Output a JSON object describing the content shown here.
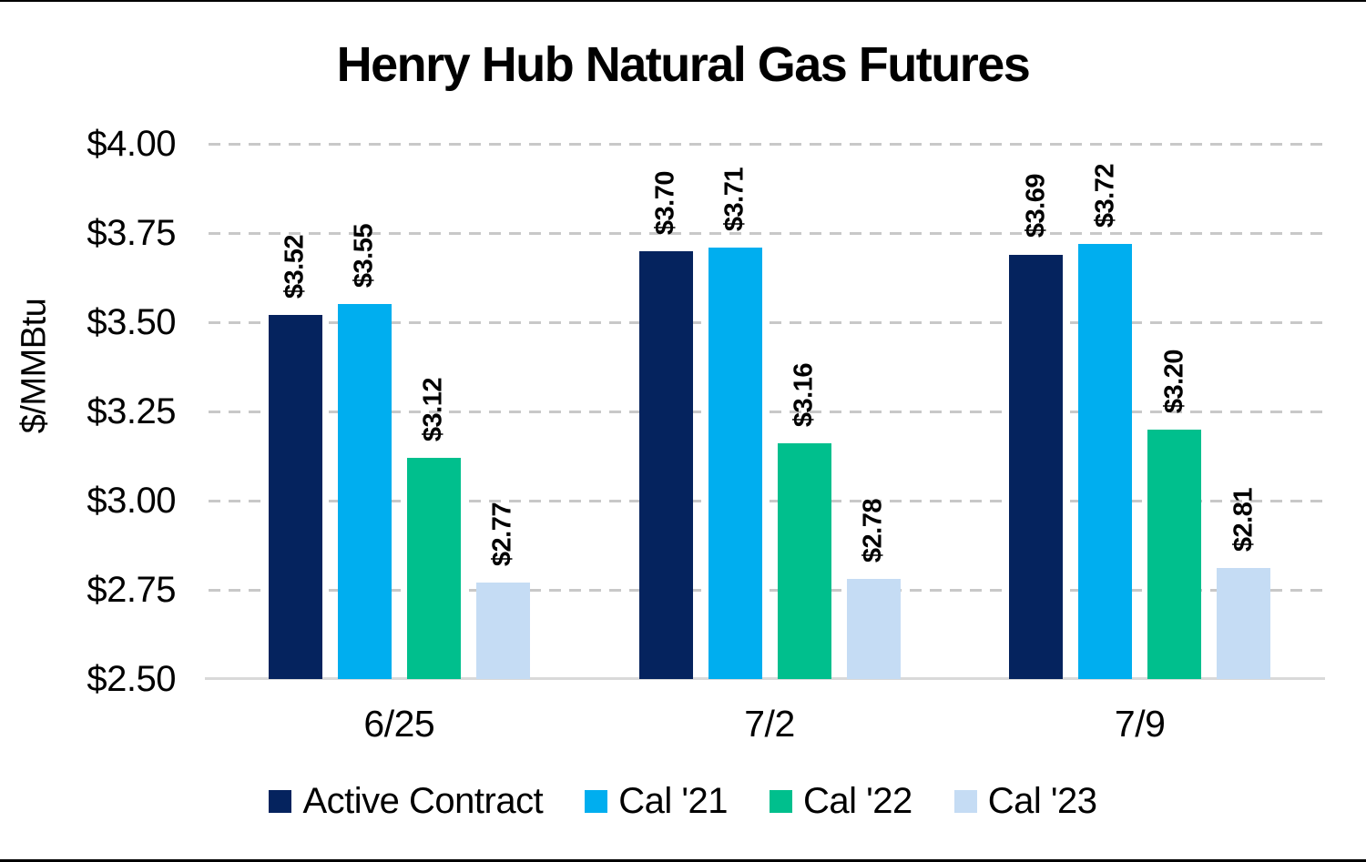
{
  "chart_data": {
    "type": "bar",
    "title": "Henry Hub Natural Gas Futures",
    "ylabel": "$/MMBtu",
    "xlabel": "",
    "categories": [
      "6/25",
      "7/2",
      "7/9"
    ],
    "series": [
      {
        "name": "Active Contract",
        "color": "#05235E",
        "values": [
          3.52,
          3.7,
          3.69
        ],
        "bar_labels": [
          "$3.52",
          "$3.70",
          "$3.69"
        ]
      },
      {
        "name": "Cal '21",
        "color": "#00AEEF",
        "values": [
          3.55,
          3.71,
          3.72
        ],
        "bar_labels": [
          "$3.55",
          "$3.71",
          "$3.72"
        ]
      },
      {
        "name": "Cal '22",
        "color": "#00BF8D",
        "values": [
          3.12,
          3.16,
          3.2
        ],
        "bar_labels": [
          "$3.12",
          "$3.16",
          "$3.20"
        ]
      },
      {
        "name": "Cal '23",
        "color": "#C5DCF4",
        "values": [
          2.77,
          2.78,
          2.81
        ],
        "bar_labels": [
          "$2.77",
          "$2.78",
          "$2.81"
        ]
      }
    ],
    "y_axis": {
      "min": 2.5,
      "max": 4.0,
      "step": 0.25,
      "tick_labels": [
        "$2.50",
        "$2.75",
        "$3.00",
        "$3.25",
        "$3.50",
        "$3.75",
        "$4.00"
      ]
    },
    "ylim": [
      2.5,
      4.0
    ],
    "grid": "horizontal-dashed",
    "legend_position": "bottom",
    "colors": {
      "gridline": "#C8C8C8",
      "axis_line": "#D9D9D9",
      "text": "#000000",
      "background": "#FFFFFF"
    }
  }
}
